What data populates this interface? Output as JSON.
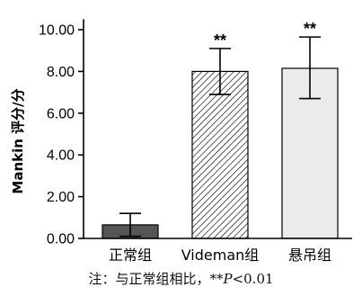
{
  "chart_data": {
    "type": "bar",
    "ylabel": "Mankin 评分/分",
    "categories": [
      "正常组",
      "Videman组",
      "悬吊组"
    ],
    "values": [
      0.65,
      8.0,
      8.15
    ],
    "error_plus": [
      0.55,
      1.1,
      1.5
    ],
    "error_minus": [
      0.55,
      1.1,
      1.45
    ],
    "significance": [
      "",
      "**",
      "**"
    ],
    "bar_styles": [
      {
        "fill": "#555555",
        "pattern": "solid"
      },
      {
        "fill": "#ffffff",
        "pattern": "diagonal-hatch"
      },
      {
        "fill": "#ebebeb",
        "pattern": "solid"
      }
    ],
    "yticks": [
      "0.00",
      "2.00",
      "4.00",
      "6.00",
      "8.00",
      "10.00"
    ],
    "ylim": [
      0,
      10.5
    ],
    "grid": false
  },
  "caption": {
    "prefix": "注：与正常组相比，**",
    "p_symbol": "P",
    "suffix": "<0.01"
  }
}
